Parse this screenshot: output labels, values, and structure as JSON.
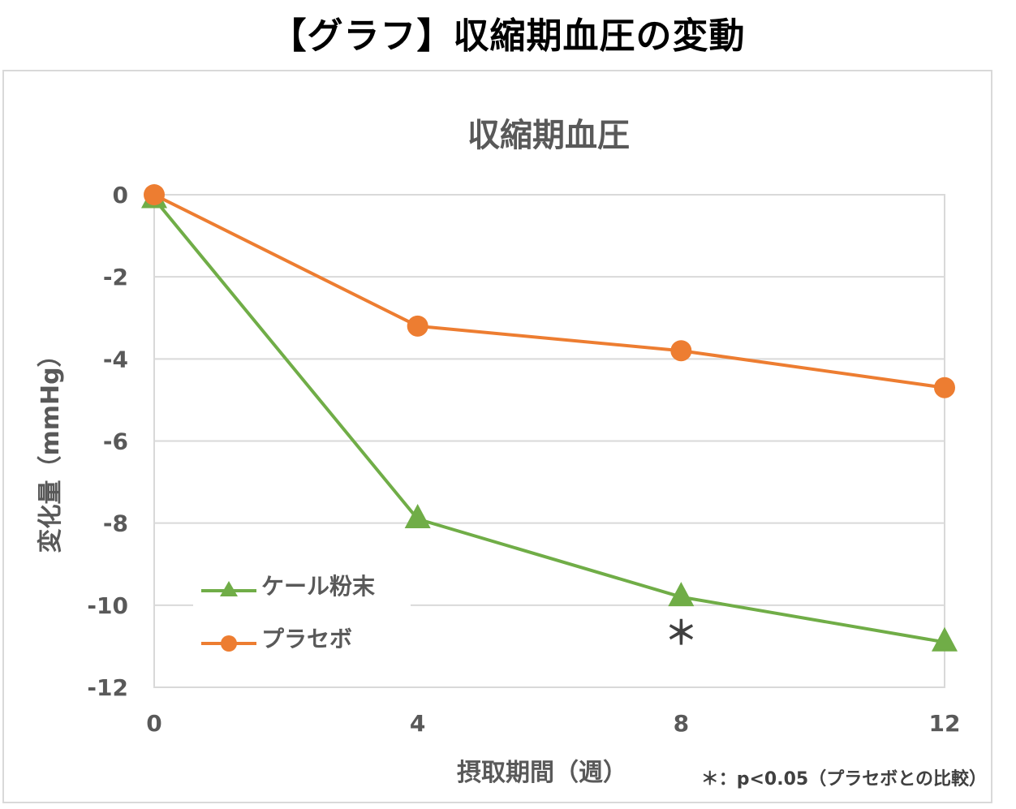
{
  "page": {
    "title": "【グラフ】収縮期血圧の変動"
  },
  "chart_data": {
    "type": "line",
    "title": "収縮期血圧",
    "xlabel": "摂取期間（週）",
    "ylabel": "変化量（mmHg）",
    "x": [
      0,
      4,
      8,
      12
    ],
    "xlim": [
      0,
      12
    ],
    "ylim": [
      -12,
      0
    ],
    "x_ticks": [
      "0",
      "4",
      "8",
      "12"
    ],
    "y_ticks": [
      "0",
      "-2",
      "-4",
      "-6",
      "-8",
      "-10",
      "-12"
    ],
    "grid": true,
    "legend_position": "bottom-left",
    "series": [
      {
        "name": "ケール粉末",
        "values": [
          -0.1,
          -7.9,
          -9.8,
          -10.9
        ],
        "color": "#70ad47",
        "marker": "triangle"
      },
      {
        "name": "プラセボ",
        "values": [
          0,
          -3.2,
          -3.8,
          -4.7
        ],
        "color": "#ed7d31",
        "marker": "circle"
      }
    ],
    "annotations": [
      {
        "text": "＊",
        "x": 8,
        "series": "ケール粉末"
      }
    ],
    "footnote": "＊：p<0.05（プラセボとの比較）"
  }
}
